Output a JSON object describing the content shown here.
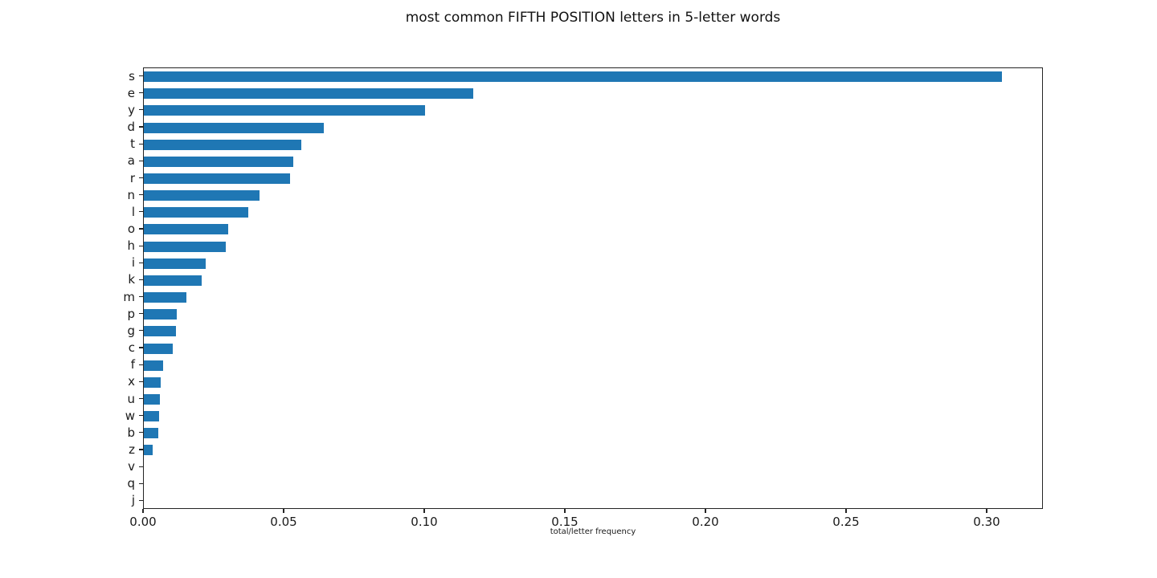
{
  "chart_data": {
    "type": "bar",
    "orientation": "horizontal",
    "title": "most common FIFTH POSITION letters in 5-letter words",
    "xlabel": "total/letter frequency",
    "ylabel": "",
    "categories": [
      "s",
      "e",
      "y",
      "d",
      "t",
      "a",
      "r",
      "n",
      "l",
      "o",
      "h",
      "i",
      "k",
      "m",
      "p",
      "g",
      "c",
      "f",
      "x",
      "u",
      "w",
      "b",
      "z",
      "v",
      "q",
      "j"
    ],
    "values": [
      0.305,
      0.117,
      0.1,
      0.064,
      0.056,
      0.053,
      0.052,
      0.041,
      0.037,
      0.03,
      0.029,
      0.022,
      0.0205,
      0.015,
      0.0117,
      0.0114,
      0.0103,
      0.0069,
      0.006,
      0.0057,
      0.0054,
      0.0051,
      0.0031,
      0.0,
      0.0,
      0.0
    ],
    "xlim": [
      0,
      0.32
    ],
    "xticks": [
      0.0,
      0.05,
      0.1,
      0.15,
      0.2,
      0.25,
      0.3
    ],
    "xtick_labels": [
      "0.00",
      "0.05",
      "0.10",
      "0.15",
      "0.20",
      "0.25",
      "0.30"
    ],
    "grid": false,
    "legend": null,
    "bar_color": "#1f77b4",
    "spine_color": "#242424",
    "background_color": "#ffffff"
  }
}
